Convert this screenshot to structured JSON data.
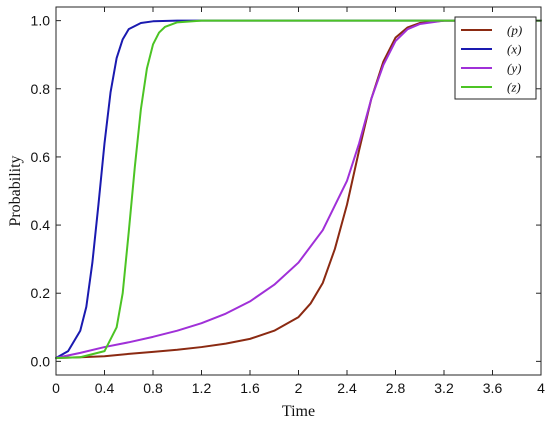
{
  "chart_data": {
    "type": "line",
    "xlabel": "Time",
    "ylabel": "Probability",
    "xlim": [
      0,
      4
    ],
    "ylim": [
      -0.04,
      1.04
    ],
    "xticks": [
      "0",
      "0.4",
      "0.8",
      "1.2",
      "1.6",
      "2",
      "2.4",
      "2.8",
      "3.2",
      "3.6",
      "4"
    ],
    "yticks": [
      "0.0",
      "0.2",
      "0.4",
      "0.6",
      "0.8",
      "1.0"
    ],
    "grid": false,
    "legend_position": "top-right",
    "series": [
      {
        "name": "(p)",
        "color": "#8B2A12",
        "points": [
          [
            0,
            0.01
          ],
          [
            0.2,
            0.012
          ],
          [
            0.4,
            0.015
          ],
          [
            0.6,
            0.022
          ],
          [
            0.8,
            0.028
          ],
          [
            1.0,
            0.034
          ],
          [
            1.2,
            0.042
          ],
          [
            1.4,
            0.052
          ],
          [
            1.6,
            0.066
          ],
          [
            1.8,
            0.09
          ],
          [
            2.0,
            0.13
          ],
          [
            2.1,
            0.17
          ],
          [
            2.2,
            0.23
          ],
          [
            2.3,
            0.33
          ],
          [
            2.4,
            0.46
          ],
          [
            2.5,
            0.62
          ],
          [
            2.6,
            0.77
          ],
          [
            2.7,
            0.88
          ],
          [
            2.8,
            0.95
          ],
          [
            2.9,
            0.98
          ],
          [
            3.0,
            0.993
          ],
          [
            3.2,
            1.0
          ],
          [
            4.0,
            1.0
          ]
        ]
      },
      {
        "name": "(x)",
        "color": "#1A1AB0",
        "points": [
          [
            0,
            0.01
          ],
          [
            0.1,
            0.03
          ],
          [
            0.2,
            0.09
          ],
          [
            0.25,
            0.16
          ],
          [
            0.3,
            0.29
          ],
          [
            0.35,
            0.46
          ],
          [
            0.4,
            0.64
          ],
          [
            0.45,
            0.79
          ],
          [
            0.5,
            0.89
          ],
          [
            0.55,
            0.945
          ],
          [
            0.6,
            0.975
          ],
          [
            0.7,
            0.993
          ],
          [
            0.8,
            0.998
          ],
          [
            1.0,
            1.0
          ],
          [
            4.0,
            1.0
          ]
        ]
      },
      {
        "name": "(y)",
        "color": "#A030D8",
        "points": [
          [
            0,
            0.01
          ],
          [
            0.2,
            0.025
          ],
          [
            0.4,
            0.042
          ],
          [
            0.6,
            0.056
          ],
          [
            0.8,
            0.072
          ],
          [
            1.0,
            0.09
          ],
          [
            1.2,
            0.112
          ],
          [
            1.4,
            0.14
          ],
          [
            1.6,
            0.176
          ],
          [
            1.8,
            0.225
          ],
          [
            2.0,
            0.29
          ],
          [
            2.2,
            0.385
          ],
          [
            2.4,
            0.53
          ],
          [
            2.5,
            0.64
          ],
          [
            2.6,
            0.77
          ],
          [
            2.7,
            0.87
          ],
          [
            2.8,
            0.94
          ],
          [
            2.9,
            0.975
          ],
          [
            3.0,
            0.99
          ],
          [
            3.2,
            1.0
          ],
          [
            4.0,
            1.0
          ]
        ]
      },
      {
        "name": "(z)",
        "color": "#4CC424",
        "points": [
          [
            0,
            0.01
          ],
          [
            0.2,
            0.012
          ],
          [
            0.4,
            0.03
          ],
          [
            0.5,
            0.1
          ],
          [
            0.55,
            0.2
          ],
          [
            0.6,
            0.38
          ],
          [
            0.65,
            0.57
          ],
          [
            0.7,
            0.74
          ],
          [
            0.75,
            0.86
          ],
          [
            0.8,
            0.93
          ],
          [
            0.85,
            0.965
          ],
          [
            0.9,
            0.982
          ],
          [
            1.0,
            0.995
          ],
          [
            1.2,
            1.0
          ],
          [
            4.0,
            1.0
          ]
        ]
      }
    ]
  }
}
